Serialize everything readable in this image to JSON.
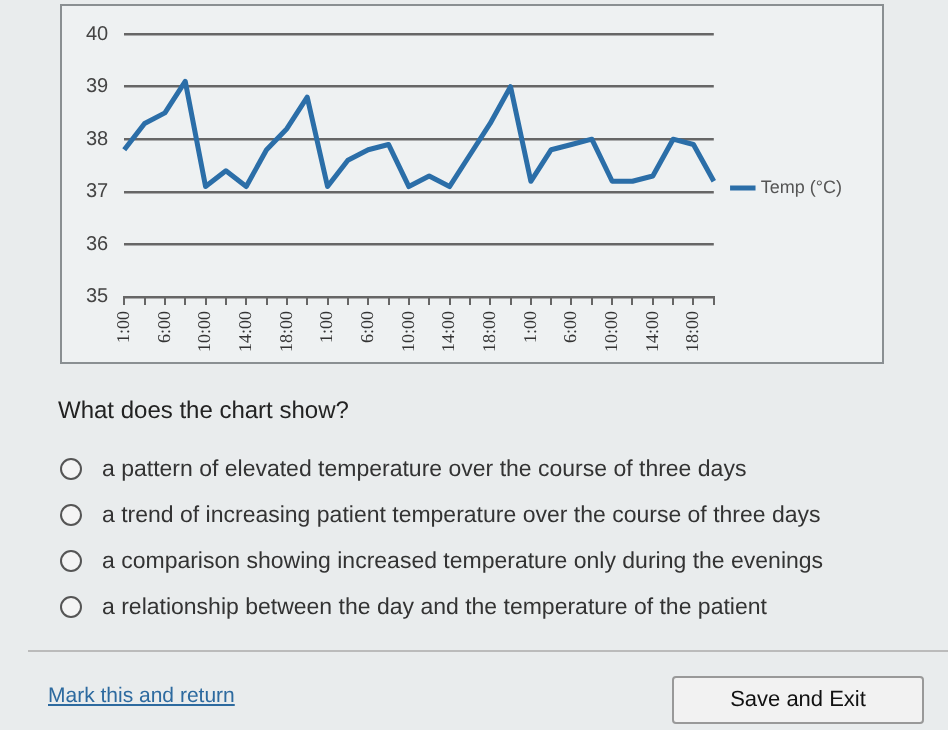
{
  "chart_data": {
    "type": "line",
    "categories": [
      "1:00",
      null,
      "6:00",
      null,
      "10:00",
      null,
      "14:00",
      null,
      "18:00",
      null,
      "1:00",
      null,
      "6:00",
      null,
      "10:00",
      null,
      "14:00",
      null,
      "18:00",
      null,
      "1:00",
      null,
      "6:00",
      null,
      "10:00",
      null,
      "14:00",
      null,
      "18:00",
      null
    ],
    "series": [
      {
        "name": "Temp (°C)",
        "color": "#2b6ea8",
        "values": [
          37.8,
          38.3,
          38.5,
          39.1,
          37.1,
          37.4,
          37.1,
          37.8,
          38.2,
          38.8,
          37.1,
          37.6,
          37.8,
          37.9,
          37.1,
          37.3,
          37.1,
          37.7,
          38.3,
          39.0,
          37.2,
          37.8,
          37.9,
          38.0,
          37.2,
          37.2,
          37.3,
          38.0,
          37.9,
          37.2
        ]
      }
    ],
    "ylim": [
      35,
      40
    ],
    "yticks": [
      35,
      36,
      37,
      38,
      39,
      40
    ],
    "grid": "y",
    "legend": "right",
    "marker": "none",
    "line_style": "solid",
    "annotations": [
      "What does the chart show?",
      "a pattern of elevated temperature over the course of three days",
      "a trend of increasing patient temperature over the course of three days",
      "a comparison showing increased temperature only during the evenings",
      "a relationship between the day and the temperature of the patient",
      "Mark this and return",
      "Save and Exit"
    ]
  }
}
